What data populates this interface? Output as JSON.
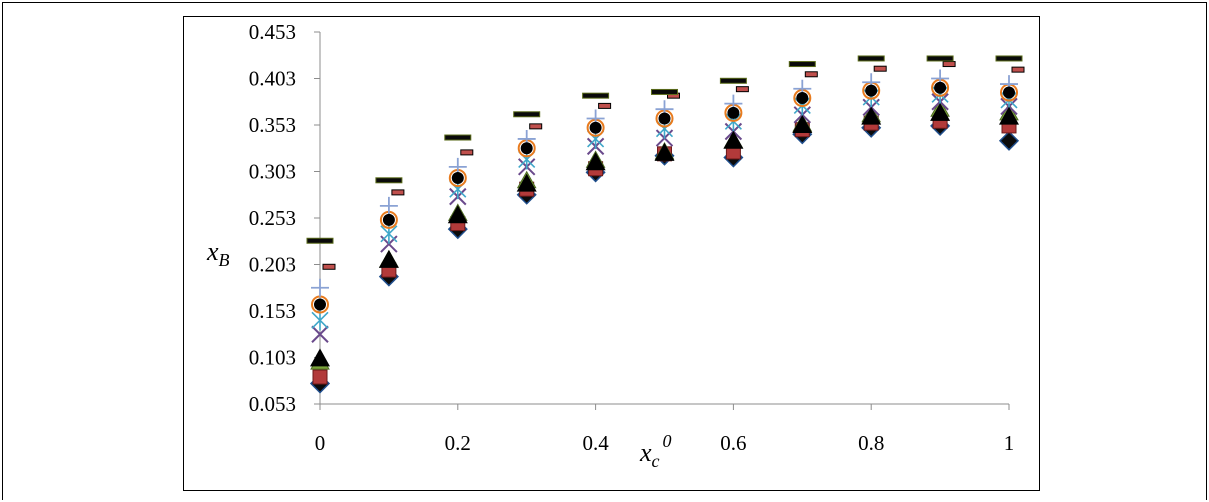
{
  "chart_data": {
    "type": "scatter",
    "title": "",
    "xlabel": "x_c^0",
    "ylabel": "x_B",
    "xlabel_parts": {
      "base": "x",
      "sub": "c",
      "sup": "0"
    },
    "ylabel_parts": {
      "base": "x",
      "sub": "B"
    },
    "xlim": [
      0,
      1
    ],
    "ylim": [
      0.053,
      0.453
    ],
    "x_ticks": [
      "0",
      "0.2",
      "0.4",
      "0.6",
      "0.8",
      "1"
    ],
    "y_ticks": [
      "0.053",
      "0.103",
      "0.153",
      "0.203",
      "0.253",
      "0.303",
      "0.353",
      "0.403",
      "0.453"
    ],
    "grid": false,
    "legend": "none",
    "x": [
      0,
      0.1,
      0.2,
      0.3,
      0.4,
      0.5,
      0.6,
      0.7,
      0.8,
      0.9,
      1.0
    ],
    "series": [
      {
        "marker": "diamond",
        "color": "#1f4e8c",
        "values": [
          0.075,
          0.19,
          0.241,
          0.278,
          0.302,
          0.32,
          0.318,
          0.343,
          0.35,
          0.352,
          0.336
        ]
      },
      {
        "marker": "square",
        "color": "#b23a3a",
        "values": [
          0.082,
          0.197,
          0.247,
          0.284,
          0.306,
          0.322,
          0.324,
          0.348,
          0.355,
          0.357,
          0.352
        ]
      },
      {
        "marker": "triangle",
        "color": "#7aa33a",
        "values": [
          0.098,
          0.208,
          0.258,
          0.293,
          0.315,
          0.324,
          0.336,
          0.354,
          0.364,
          0.37,
          0.366
        ]
      },
      {
        "marker": "x-cross",
        "color": "#6a4a8c",
        "values": [
          0.128,
          0.225,
          0.276,
          0.308,
          0.33,
          0.339,
          0.346,
          0.364,
          0.372,
          0.378,
          0.373
        ]
      },
      {
        "marker": "star",
        "color": "#3fa7c9",
        "values": [
          0.143,
          0.236,
          0.284,
          0.316,
          0.338,
          0.349,
          0.357,
          0.374,
          0.383,
          0.386,
          0.38
        ]
      },
      {
        "marker": "circle",
        "color": "#e87b1e",
        "values": [
          0.16,
          0.251,
          0.296,
          0.328,
          0.35,
          0.36,
          0.366,
          0.382,
          0.39,
          0.393,
          0.388
        ]
      },
      {
        "marker": "plus",
        "color": "#8aa2d4",
        "values": [
          0.178,
          0.266,
          0.308,
          0.338,
          0.36,
          0.37,
          0.376,
          0.392,
          0.399,
          0.403,
          0.397
        ]
      },
      {
        "marker": "dash",
        "color": "#c0504d",
        "values": [
          0.2,
          0.28,
          0.323,
          0.351,
          0.373,
          0.384,
          0.391,
          0.407,
          0.413,
          0.418,
          0.412
        ]
      },
      {
        "marker": "long-dash",
        "color": "#0a0a0a",
        "values": [
          0.228,
          0.293,
          0.339,
          0.364,
          0.384,
          0.388,
          0.4,
          0.418,
          0.424,
          0.424,
          0.424
        ]
      },
      {
        "marker": "black-triangle",
        "color": "#000000",
        "values": [
          0.102,
          0.208,
          0.256,
          0.29,
          0.313,
          0.323,
          0.336,
          0.353,
          0.362,
          0.366,
          0.362
        ]
      },
      {
        "marker": "black-circle",
        "color": "#000000",
        "values": [
          0.16,
          0.251,
          0.296,
          0.328,
          0.35,
          0.36,
          0.366,
          0.382,
          0.39,
          0.393,
          0.388
        ]
      }
    ]
  }
}
